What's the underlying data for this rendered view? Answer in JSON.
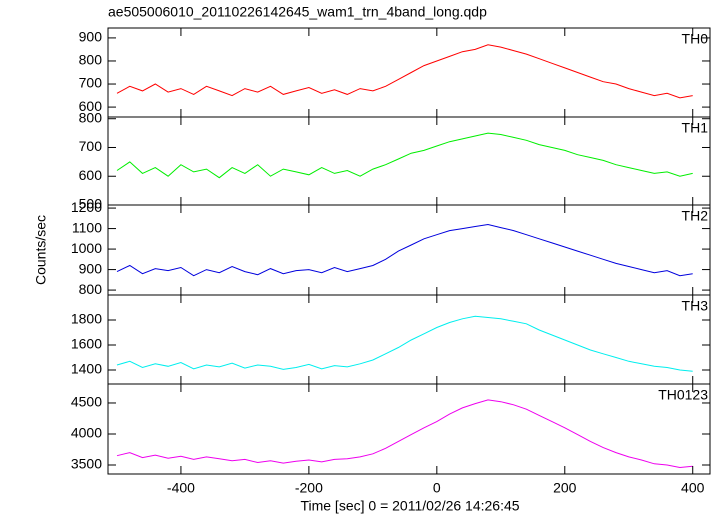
{
  "chart_data": [
    {
      "type": "line",
      "title": "ae505006010_20110226142645_wam1_trn_4band_long.qdp",
      "label": "TH0",
      "x": [
        -500,
        -480,
        -460,
        -440,
        -420,
        -400,
        -380,
        -360,
        -340,
        -320,
        -300,
        -280,
        -260,
        -240,
        -220,
        -200,
        -180,
        -160,
        -140,
        -120,
        -100,
        -80,
        -60,
        -40,
        -20,
        0,
        20,
        40,
        60,
        80,
        100,
        120,
        140,
        160,
        180,
        200,
        220,
        240,
        260,
        280,
        300,
        320,
        340,
        360,
        380,
        400
      ],
      "series": [
        {
          "name": "TH0",
          "color": "#ff0000",
          "values": [
            660,
            690,
            670,
            700,
            665,
            680,
            655,
            690,
            670,
            650,
            680,
            665,
            690,
            655,
            670,
            685,
            660,
            675,
            655,
            680,
            670,
            690,
            720,
            750,
            780,
            800,
            820,
            840,
            850,
            870,
            860,
            845,
            830,
            810,
            790,
            770,
            750,
            730,
            710,
            700,
            680,
            665,
            650,
            660,
            640,
            650
          ]
        }
      ],
      "xlim": [
        -514,
        427
      ],
      "ylim": [
        557,
        943
      ],
      "yticks": [
        600,
        700,
        800,
        900
      ]
    },
    {
      "type": "line",
      "label": "TH1",
      "x": [
        -500,
        -480,
        -460,
        -440,
        -420,
        -400,
        -380,
        -360,
        -340,
        -320,
        -300,
        -280,
        -260,
        -240,
        -220,
        -200,
        -180,
        -160,
        -140,
        -120,
        -100,
        -80,
        -60,
        -40,
        -20,
        0,
        20,
        40,
        60,
        80,
        100,
        120,
        140,
        160,
        180,
        200,
        220,
        240,
        260,
        280,
        300,
        320,
        340,
        360,
        380,
        400
      ],
      "series": [
        {
          "name": "TH1",
          "color": "#00ee00",
          "values": [
            620,
            650,
            610,
            630,
            600,
            640,
            615,
            625,
            595,
            630,
            610,
            640,
            600,
            625,
            615,
            605,
            630,
            610,
            620,
            600,
            625,
            640,
            660,
            680,
            690,
            705,
            720,
            730,
            740,
            750,
            745,
            735,
            725,
            710,
            700,
            690,
            675,
            665,
            655,
            640,
            630,
            620,
            610,
            615,
            600,
            610
          ]
        }
      ],
      "xlim": [
        -514,
        427
      ],
      "ylim": [
        500,
        806
      ],
      "yticks": [
        500,
        600,
        700,
        800
      ]
    },
    {
      "type": "line",
      "label": "TH2",
      "ylabel": "Counts/sec",
      "x": [
        -500,
        -480,
        -460,
        -440,
        -420,
        -400,
        -380,
        -360,
        -340,
        -320,
        -300,
        -280,
        -260,
        -240,
        -220,
        -200,
        -180,
        -160,
        -140,
        -120,
        -100,
        -80,
        -60,
        -40,
        -20,
        0,
        20,
        40,
        60,
        80,
        100,
        120,
        140,
        160,
        180,
        200,
        220,
        240,
        260,
        280,
        300,
        320,
        340,
        360,
        380,
        400
      ],
      "series": [
        {
          "name": "TH2",
          "color": "#0000dd",
          "values": [
            890,
            920,
            880,
            905,
            895,
            910,
            870,
            900,
            885,
            915,
            890,
            875,
            905,
            880,
            895,
            900,
            885,
            910,
            890,
            905,
            920,
            950,
            990,
            1020,
            1050,
            1070,
            1090,
            1100,
            1110,
            1120,
            1105,
            1090,
            1070,
            1050,
            1030,
            1010,
            990,
            970,
            950,
            930,
            915,
            900,
            885,
            895,
            870,
            880
          ]
        }
      ],
      "xlim": [
        -514,
        427
      ],
      "ylim": [
        776,
        1215
      ],
      "yticks": [
        800,
        900,
        1000,
        1100,
        1200
      ]
    },
    {
      "type": "line",
      "label": "TH3",
      "x": [
        -500,
        -480,
        -460,
        -440,
        -420,
        -400,
        -380,
        -360,
        -340,
        -320,
        -300,
        -280,
        -260,
        -240,
        -220,
        -200,
        -180,
        -160,
        -140,
        -120,
        -100,
        -80,
        -60,
        -40,
        -20,
        0,
        20,
        40,
        60,
        80,
        100,
        120,
        140,
        160,
        180,
        200,
        220,
        240,
        260,
        280,
        300,
        320,
        340,
        360,
        380,
        400
      ],
      "series": [
        {
          "name": "TH3",
          "color": "#00eeee",
          "values": [
            1440,
            1470,
            1420,
            1450,
            1430,
            1460,
            1410,
            1440,
            1425,
            1455,
            1415,
            1440,
            1430,
            1405,
            1420,
            1445,
            1410,
            1435,
            1425,
            1450,
            1480,
            1530,
            1580,
            1640,
            1690,
            1740,
            1780,
            1810,
            1830,
            1820,
            1810,
            1790,
            1770,
            1720,
            1680,
            1640,
            1600,
            1560,
            1530,
            1500,
            1470,
            1450,
            1430,
            1420,
            1400,
            1390
          ]
        }
      ],
      "xlim": [
        -514,
        427
      ],
      "ylim": [
        1288,
        2000
      ],
      "yticks": [
        1400,
        1600,
        1800
      ]
    },
    {
      "type": "line",
      "label": "TH0123",
      "xlabel": "Time [sec] 0 = 2011/02/26 14:26:45",
      "x": [
        -500,
        -480,
        -460,
        -440,
        -420,
        -400,
        -380,
        -360,
        -340,
        -320,
        -300,
        -280,
        -260,
        -240,
        -220,
        -200,
        -180,
        -160,
        -140,
        -120,
        -100,
        -80,
        -60,
        -40,
        -20,
        0,
        20,
        40,
        60,
        80,
        100,
        120,
        140,
        160,
        180,
        200,
        220,
        240,
        260,
        280,
        300,
        320,
        340,
        360,
        380,
        400
      ],
      "series": [
        {
          "name": "TH0123",
          "color": "#ee00ee",
          "values": [
            3650,
            3700,
            3620,
            3660,
            3610,
            3640,
            3590,
            3630,
            3600,
            3570,
            3590,
            3540,
            3570,
            3530,
            3560,
            3580,
            3550,
            3590,
            3600,
            3630,
            3680,
            3770,
            3880,
            3990,
            4100,
            4200,
            4320,
            4420,
            4490,
            4550,
            4520,
            4470,
            4400,
            4300,
            4200,
            4100,
            3990,
            3880,
            3780,
            3700,
            3630,
            3580,
            3520,
            3500,
            3460,
            3480
          ]
        }
      ],
      "xlim": [
        -514,
        427
      ],
      "ylim": [
        3355,
        4806
      ],
      "yticks": [
        3500,
        4000,
        4500
      ],
      "xticks": [
        -400,
        -200,
        0,
        200,
        400
      ]
    }
  ]
}
